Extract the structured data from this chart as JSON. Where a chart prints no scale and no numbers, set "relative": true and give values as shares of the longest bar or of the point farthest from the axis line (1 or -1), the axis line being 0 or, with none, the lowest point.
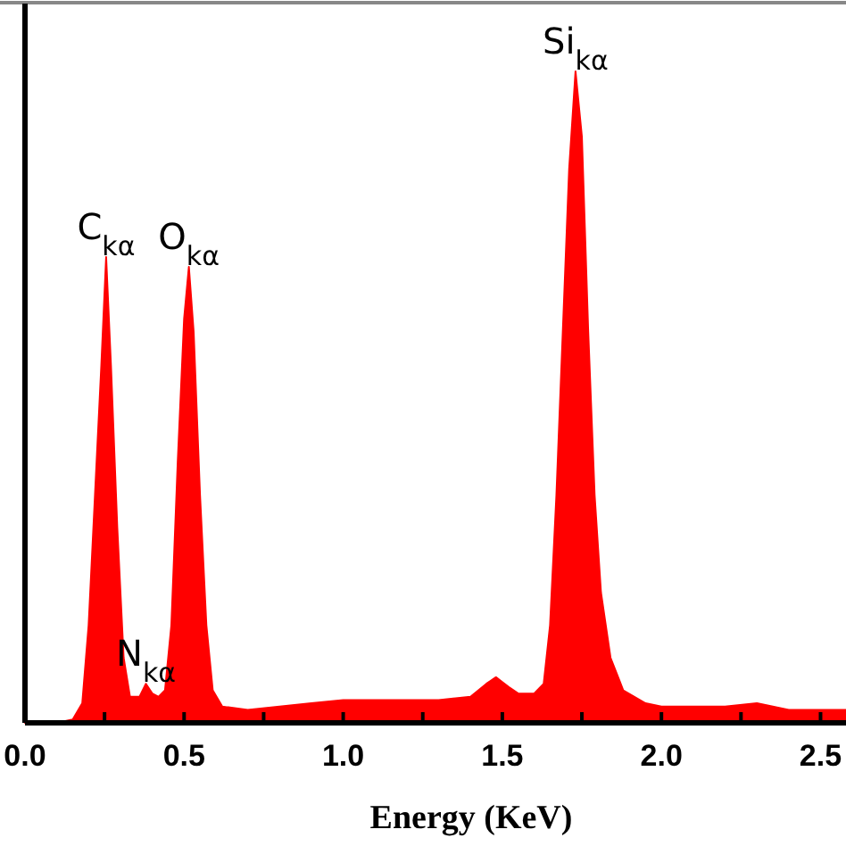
{
  "chart_data": {
    "type": "area",
    "xlabel": "Energy (KeV)",
    "relative": true,
    "color": "#ff0000",
    "x": [
      0,
      0.1,
      0.15,
      0.18,
      0.2,
      0.22,
      0.24,
      0.255,
      0.27,
      0.29,
      0.31,
      0.33,
      0.36,
      0.38,
      0.4,
      0.42,
      0.44,
      0.46,
      0.48,
      0.5,
      0.515,
      0.53,
      0.55,
      0.57,
      0.59,
      0.62,
      0.7,
      0.8,
      0.9,
      1.0,
      1.1,
      1.2,
      1.3,
      1.4,
      1.45,
      1.48,
      1.52,
      1.55,
      1.6,
      1.63,
      1.65,
      1.67,
      1.69,
      1.71,
      1.73,
      1.75,
      1.77,
      1.79,
      1.81,
      1.84,
      1.88,
      1.95,
      2.0,
      2.2,
      2.3,
      2.4,
      2.58
    ],
    "values": [
      0,
      0,
      0.005,
      0.03,
      0.15,
      0.35,
      0.55,
      0.715,
      0.55,
      0.3,
      0.1,
      0.04,
      0.04,
      0.06,
      0.045,
      0.04,
      0.05,
      0.15,
      0.4,
      0.62,
      0.7,
      0.6,
      0.35,
      0.15,
      0.05,
      0.025,
      0.02,
      0.025,
      0.03,
      0.035,
      0.035,
      0.035,
      0.035,
      0.04,
      0.06,
      0.07,
      0.055,
      0.045,
      0.045,
      0.06,
      0.15,
      0.35,
      0.6,
      0.85,
      1.0,
      0.9,
      0.6,
      0.35,
      0.2,
      0.1,
      0.05,
      0.03,
      0.025,
      0.025,
      0.03,
      0.02,
      0.02
    ],
    "xlim": [
      0,
      2.58
    ],
    "xticks": [
      {
        "value": 0,
        "label": "0.0"
      },
      {
        "value": 0.25,
        "label": null
      },
      {
        "value": 0.5,
        "label": "0.5"
      },
      {
        "value": 0.75,
        "label": null
      },
      {
        "value": 1,
        "label": "1.0"
      },
      {
        "value": 1.25,
        "label": null
      },
      {
        "value": 1.5,
        "label": "1.5"
      },
      {
        "value": 1.75,
        "label": null
      },
      {
        "value": 2,
        "label": "2.0"
      },
      {
        "value": 2.25,
        "label": null
      },
      {
        "value": 2.5,
        "label": "2.5"
      }
    ],
    "annotations": [
      {
        "text": "C$_{kα}$",
        "x": 0.255,
        "y": 0.715
      },
      {
        "text": "O$_{kα}$",
        "x": 0.515,
        "y": 0.7
      },
      {
        "text": "N$_{kα}$",
        "x": 0.38,
        "y": 0.06
      },
      {
        "text": "Si$_{kα}$",
        "x": 1.73,
        "y": 1.0
      }
    ]
  }
}
